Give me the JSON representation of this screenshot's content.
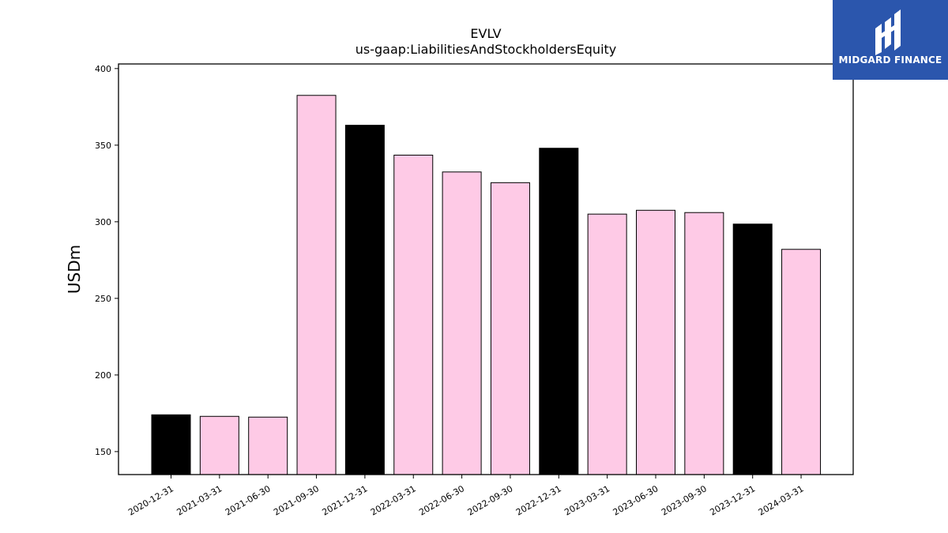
{
  "brand": {
    "name": "MIDGARD FINANCE",
    "logo_icon": "midgard-logo-icon",
    "background": "#2b56ad"
  },
  "chart_data": {
    "type": "bar",
    "title": "EVLV",
    "subtitle": "us-gaap:LiabilitiesAndStockholdersEquity",
    "xlabel": "",
    "ylabel": "USDm",
    "ylim": [
      135,
      403
    ],
    "yticks": [
      150,
      200,
      250,
      300,
      350,
      400
    ],
    "grid": false,
    "categories": [
      "2020-12-31",
      "2021-03-31",
      "2021-06-30",
      "2021-09-30",
      "2021-12-31",
      "2022-03-31",
      "2022-06-30",
      "2022-09-30",
      "2022-12-31",
      "2023-03-31",
      "2023-06-30",
      "2023-09-30",
      "2023-12-31",
      "2024-03-31"
    ],
    "values": [
      174,
      173,
      172.5,
      382.5,
      363,
      343.5,
      332.5,
      325.5,
      348,
      305,
      307.5,
      306,
      298.5,
      282
    ],
    "bar_colors": [
      "#000000",
      "#fecae6",
      "#fecae6",
      "#fecae6",
      "#000000",
      "#fecae6",
      "#fecae6",
      "#fecae6",
      "#000000",
      "#fecae6",
      "#fecae6",
      "#fecae6",
      "#000000",
      "#fecae6"
    ]
  }
}
